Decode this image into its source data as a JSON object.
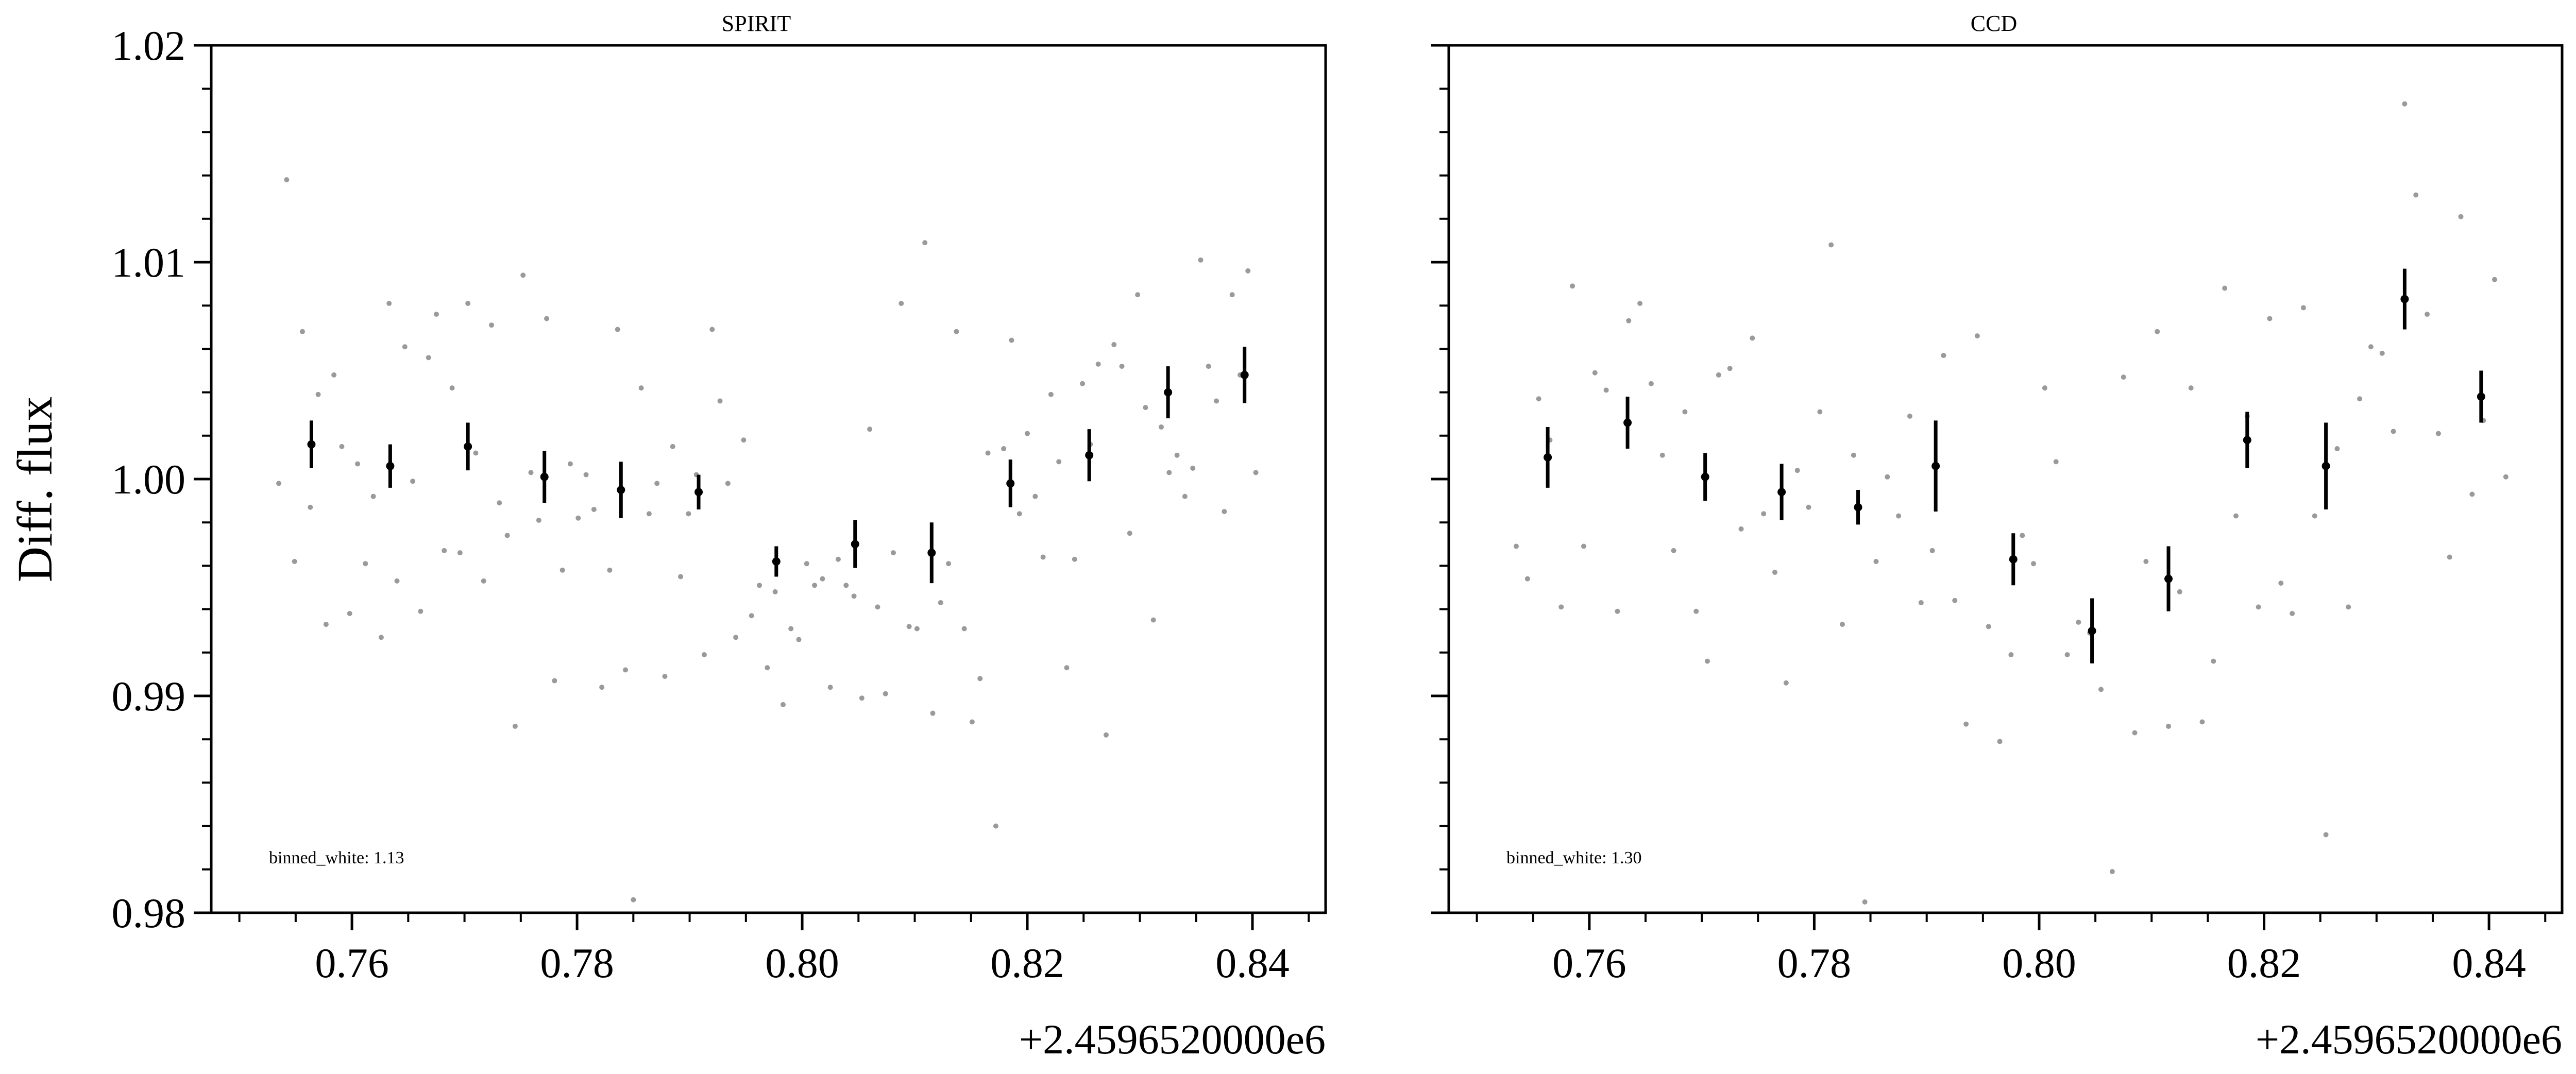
{
  "chart_data": [
    {
      "type": "scatter",
      "title": "SPIRIT",
      "ylabel": "Diff. flux",
      "xlabel": "",
      "x_offset_label": "+2.4596520000e6",
      "xlim": [
        0.7475,
        0.8465
      ],
      "ylim": [
        0.98,
        1.02
      ],
      "x_ticks": [
        0.76,
        0.78,
        0.8,
        0.82,
        0.84
      ],
      "x_tick_labels": [
        "0.76",
        "0.78",
        "0.80",
        "0.82",
        "0.84"
      ],
      "y_ticks": [
        0.98,
        0.99,
        1.0,
        1.01,
        1.02
      ],
      "y_tick_labels": [
        "0.98",
        "0.99",
        "1.00",
        "1.01",
        "1.02"
      ],
      "annotation": "binned_white: 1.13",
      "colors": {
        "raw": "#9a9a9a",
        "binned": "#000000"
      },
      "series": [
        {
          "kind": "raw",
          "x": [
            0.7535,
            0.7542,
            0.7549,
            0.7556,
            0.7563,
            0.757,
            0.7577,
            0.7584,
            0.7591,
            0.7598,
            0.7605,
            0.7612,
            0.7619,
            0.7626,
            0.7633,
            0.764,
            0.7647,
            0.7654,
            0.7661,
            0.7668,
            0.7675,
            0.7682,
            0.7689,
            0.7696,
            0.7703,
            0.771,
            0.7717,
            0.7724,
            0.7731,
            0.7738,
            0.7745,
            0.7752,
            0.7759,
            0.7766,
            0.7773,
            0.778,
            0.7787,
            0.7794,
            0.7801,
            0.7808,
            0.7815,
            0.7822,
            0.7829,
            0.7836,
            0.7843,
            0.785,
            0.7857,
            0.7864,
            0.7871,
            0.7878,
            0.7885,
            0.7892,
            0.7899,
            0.7906,
            0.7913,
            0.792,
            0.7927,
            0.7934,
            0.7941,
            0.7948,
            0.7955,
            0.7962,
            0.7969,
            0.7976,
            0.7983,
            0.799,
            0.7997,
            0.8004,
            0.8011,
            0.8018,
            0.8025,
            0.8032,
            0.8039,
            0.8046,
            0.8053,
            0.806,
            0.8067,
            0.8074,
            0.8081,
            0.8088,
            0.8095,
            0.8102,
            0.8109,
            0.8116,
            0.8123,
            0.813,
            0.8137,
            0.8144,
            0.8151,
            0.8158,
            0.8165,
            0.8172,
            0.8179,
            0.8186,
            0.8193,
            0.82,
            0.8207,
            0.8214,
            0.8221,
            0.8228,
            0.8235,
            0.8242,
            0.8249,
            0.8256,
            0.8263,
            0.827,
            0.8277,
            0.8284,
            0.8291,
            0.8298,
            0.8305,
            0.8312,
            0.8319,
            0.8326,
            0.8333,
            0.834,
            0.8347,
            0.8354,
            0.8361,
            0.8368,
            0.8375,
            0.8382,
            0.8389,
            0.8396,
            0.8403
          ],
          "y": [
            0.9998,
            1.0138,
            0.9962,
            1.0068,
            0.9987,
            1.0039,
            0.9933,
            1.0048,
            1.0015,
            0.9938,
            1.0007,
            0.9961,
            0.9992,
            0.9927,
            1.0081,
            0.9953,
            1.0061,
            0.9999,
            0.9939,
            1.0056,
            1.0076,
            0.9967,
            1.0042,
            0.9966,
            1.0081,
            1.0012,
            0.9953,
            1.0071,
            0.9989,
            0.9974,
            0.9886,
            1.0094,
            1.0003,
            0.9981,
            1.0074,
            0.9907,
            0.9958,
            1.0007,
            0.9982,
            1.0002,
            0.9986,
            0.9904,
            0.9958,
            1.0069,
            0.9912,
            0.9806,
            1.0042,
            0.9984,
            0.9998,
            0.9909,
            1.0015,
            0.9955,
            0.9984,
            1.0002,
            0.9919,
            1.0069,
            1.0036,
            0.9998,
            0.9927,
            1.0018,
            0.9937,
            0.9951,
            0.9913,
            0.9948,
            0.9896,
            0.9931,
            0.9926,
            0.9961,
            0.9951,
            0.9954,
            0.9904,
            0.9963,
            0.9951,
            0.9946,
            0.9899,
            1.0023,
            0.9941,
            0.9901,
            0.9966,
            1.0081,
            0.9932,
            0.9931,
            1.0109,
            0.9892,
            0.9943,
            0.9961,
            1.0068,
            0.9931,
            0.9888,
            0.9908,
            1.0012,
            0.984,
            1.0014,
            1.0064,
            0.9984,
            1.0021,
            0.9992,
            0.9964,
            1.0039,
            1.0008,
            0.9913,
            0.9963,
            1.0044,
            1.0016,
            1.0053,
            0.9882,
            1.0062,
            1.0052,
            0.9975,
            1.0085,
            1.0033,
            0.9935,
            1.0024,
            1.0003,
            1.0011,
            0.9992,
            1.0005,
            1.0101,
            1.0052,
            1.0036,
            0.9985,
            1.0085,
            1.0048,
            1.0096,
            1.0003
          ]
        },
        {
          "kind": "binned",
          "x": [
            0.7564,
            0.7634,
            0.7703,
            0.7771,
            0.7839,
            0.7908,
            0.7977,
            0.8047,
            0.8115,
            0.8185,
            0.8255,
            0.8325,
            0.8393
          ],
          "y": [
            1.0016,
            1.0006,
            1.0015,
            1.0001,
            0.9995,
            0.9994,
            0.9962,
            0.997,
            0.9966,
            0.9998,
            1.0011,
            1.004,
            1.0048
          ],
          "err": [
            0.0011,
            0.001,
            0.0011,
            0.0012,
            0.0013,
            0.0008,
            0.0007,
            0.0011,
            0.0014,
            0.0011,
            0.0012,
            0.0012,
            0.0013
          ]
        }
      ]
    },
    {
      "type": "scatter",
      "title": "CCD",
      "xlabel": "",
      "ylabel": "",
      "x_offset_label": "+2.4596520000e6",
      "xlim": [
        0.7475,
        0.8465
      ],
      "ylim": [
        0.98,
        1.02
      ],
      "x_ticks": [
        0.76,
        0.78,
        0.8,
        0.82,
        0.84
      ],
      "x_tick_labels": [
        "0.76",
        "0.78",
        "0.80",
        "0.82",
        "0.84"
      ],
      "y_ticks": [
        0.98,
        0.99,
        1.0,
        1.01,
        1.02
      ],
      "annotation": "binned_white: 1.30",
      "colors": {
        "raw": "#9a9a9a",
        "binned": "#000000"
      },
      "series": [
        {
          "kind": "raw",
          "x": [
            0.7535,
            0.7545,
            0.7555,
            0.7565,
            0.7575,
            0.7585,
            0.7595,
            0.7605,
            0.7615,
            0.7625,
            0.7635,
            0.7645,
            0.7655,
            0.7665,
            0.7675,
            0.7685,
            0.7695,
            0.7705,
            0.7715,
            0.7725,
            0.7735,
            0.7745,
            0.7755,
            0.7765,
            0.7775,
            0.7785,
            0.7795,
            0.7805,
            0.7815,
            0.7825,
            0.7835,
            0.7845,
            0.7855,
            0.7865,
            0.7875,
            0.7885,
            0.7895,
            0.7905,
            0.7915,
            0.7925,
            0.7935,
            0.7945,
            0.7955,
            0.7965,
            0.7975,
            0.7985,
            0.7995,
            0.8005,
            0.8015,
            0.8025,
            0.8035,
            0.8045,
            0.8055,
            0.8065,
            0.8075,
            0.8085,
            0.8095,
            0.8105,
            0.8115,
            0.8125,
            0.8135,
            0.8145,
            0.8155,
            0.8165,
            0.8175,
            0.8185,
            0.8195,
            0.8205,
            0.8215,
            0.8225,
            0.8235,
            0.8245,
            0.8255,
            0.8265,
            0.8275,
            0.8285,
            0.8295,
            0.8305,
            0.8315,
            0.8325,
            0.8335,
            0.8345,
            0.8355,
            0.8365,
            0.8375,
            0.8385,
            0.8395,
            0.8405,
            0.8415
          ],
          "y": [
            0.9969,
            0.9954,
            1.0037,
            1.0018,
            0.9941,
            1.0089,
            0.9969,
            1.0049,
            1.0041,
            0.9939,
            1.0073,
            1.0081,
            1.0044,
            1.0011,
            0.9967,
            1.0031,
            0.9939,
            0.9916,
            1.0048,
            1.0051,
            0.9977,
            1.0065,
            0.9984,
            0.9957,
            0.9906,
            1.0004,
            0.9987,
            1.0031,
            1.0108,
            0.9933,
            1.0011,
            0.9805,
            0.9962,
            1.0001,
            0.9983,
            1.0029,
            0.9943,
            0.9967,
            1.0057,
            0.9944,
            0.9887,
            1.0066,
            0.9932,
            0.9879,
            0.9919,
            0.9974,
            0.9961,
            1.0042,
            1.0008,
            0.9919,
            0.9934,
            0.9929,
            0.9903,
            0.9819,
            1.0047,
            0.9883,
            0.9962,
            1.0068,
            0.9886,
            0.9948,
            1.0042,
            0.9888,
            0.9916,
            1.0088,
            0.9983,
            1.0029,
            0.9941,
            1.0074,
            0.9952,
            0.9938,
            1.0079,
            0.9983,
            0.9836,
            1.0014,
            0.9941,
            1.0037,
            1.0061,
            1.0058,
            1.0022,
            1.0173,
            1.0131,
            1.0076,
            1.0021,
            0.9964,
            1.0121,
            0.9993,
            1.0027,
            1.0092,
            1.0001
          ]
        },
        {
          "kind": "binned",
          "x": [
            0.7563,
            0.7634,
            0.7703,
            0.7771,
            0.7839,
            0.7908,
            0.7977,
            0.8047,
            0.8115,
            0.8185,
            0.8255,
            0.8325,
            0.8393
          ],
          "y": [
            1.001,
            1.0026,
            1.0001,
            0.9994,
            0.9987,
            1.0006,
            0.9963,
            0.993,
            0.9954,
            1.0018,
            1.0006,
            1.0083,
            1.0038
          ],
          "err": [
            0.0014,
            0.0012,
            0.0011,
            0.0013,
            0.0008,
            0.0021,
            0.0012,
            0.0015,
            0.0015,
            0.0013,
            0.002,
            0.0014,
            0.0012
          ]
        }
      ]
    }
  ]
}
